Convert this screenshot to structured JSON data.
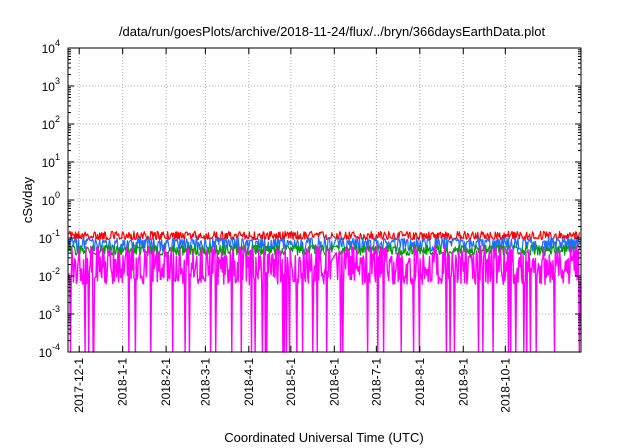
{
  "chart_data": {
    "type": "line",
    "title": "/data/run/goesPlots/archive/2018-11-24/flux/../bryn/366daysEarthData.plot",
    "xlabel": "Coordinated Universal Time (UTC)",
    "ylabel": "cSv/day",
    "yscale": "log",
    "ylim": [
      0.0001,
      10000
    ],
    "xlim": [
      "2017-11-23",
      "2018-11-24"
    ],
    "grid": true,
    "legend": "none",
    "y_ticks": [
      {
        "value": 0.0001,
        "base": "10",
        "exp": "-4"
      },
      {
        "value": 0.001,
        "base": "10",
        "exp": "-3"
      },
      {
        "value": 0.01,
        "base": "10",
        "exp": "-2"
      },
      {
        "value": 0.1,
        "base": "10",
        "exp": "-1"
      },
      {
        "value": 1,
        "base": "10",
        "exp": "0"
      },
      {
        "value": 10,
        "base": "10",
        "exp": "1"
      },
      {
        "value": 100,
        "base": "10",
        "exp": "2"
      },
      {
        "value": 1000,
        "base": "10",
        "exp": "3"
      },
      {
        "value": 10000,
        "base": "10",
        "exp": "4"
      }
    ],
    "x_ticks": [
      {
        "value": "2017-12-01",
        "label": "2017-12-1"
      },
      {
        "value": "2018-01-01",
        "label": "2018-1-1"
      },
      {
        "value": "2018-02-01",
        "label": "2018-2-1"
      },
      {
        "value": "2018-03-01",
        "label": "2018-3-1"
      },
      {
        "value": "2018-04-01",
        "label": "2018-4-1"
      },
      {
        "value": "2018-05-01",
        "label": "2018-5-1"
      },
      {
        "value": "2018-06-01",
        "label": "2018-6-1"
      },
      {
        "value": "2018-07-01",
        "label": "2018-7-1"
      },
      {
        "value": "2018-08-01",
        "label": "2018-8-1"
      },
      {
        "value": "2018-09-01",
        "label": "2018-9-1"
      },
      {
        "value": "2018-10-01",
        "label": "2018-10-1"
      }
    ],
    "series": [
      {
        "color": "#ff0000",
        "typical_value": 0.11,
        "range": [
          0.09,
          0.15
        ]
      },
      {
        "color": "#1f6fff",
        "typical_value": 0.075,
        "range": [
          0.045,
          0.1
        ]
      },
      {
        "color": "#00a000",
        "typical_value": 0.05,
        "range": [
          0.035,
          0.065
        ]
      },
      {
        "color": "#ff00ff",
        "typical_value": 0.02,
        "range": [
          0.006,
          0.06
        ],
        "dropouts_to": 0.0001
      }
    ],
    "data_gap": {
      "date": "2018-06-01",
      "note": ""
    }
  }
}
